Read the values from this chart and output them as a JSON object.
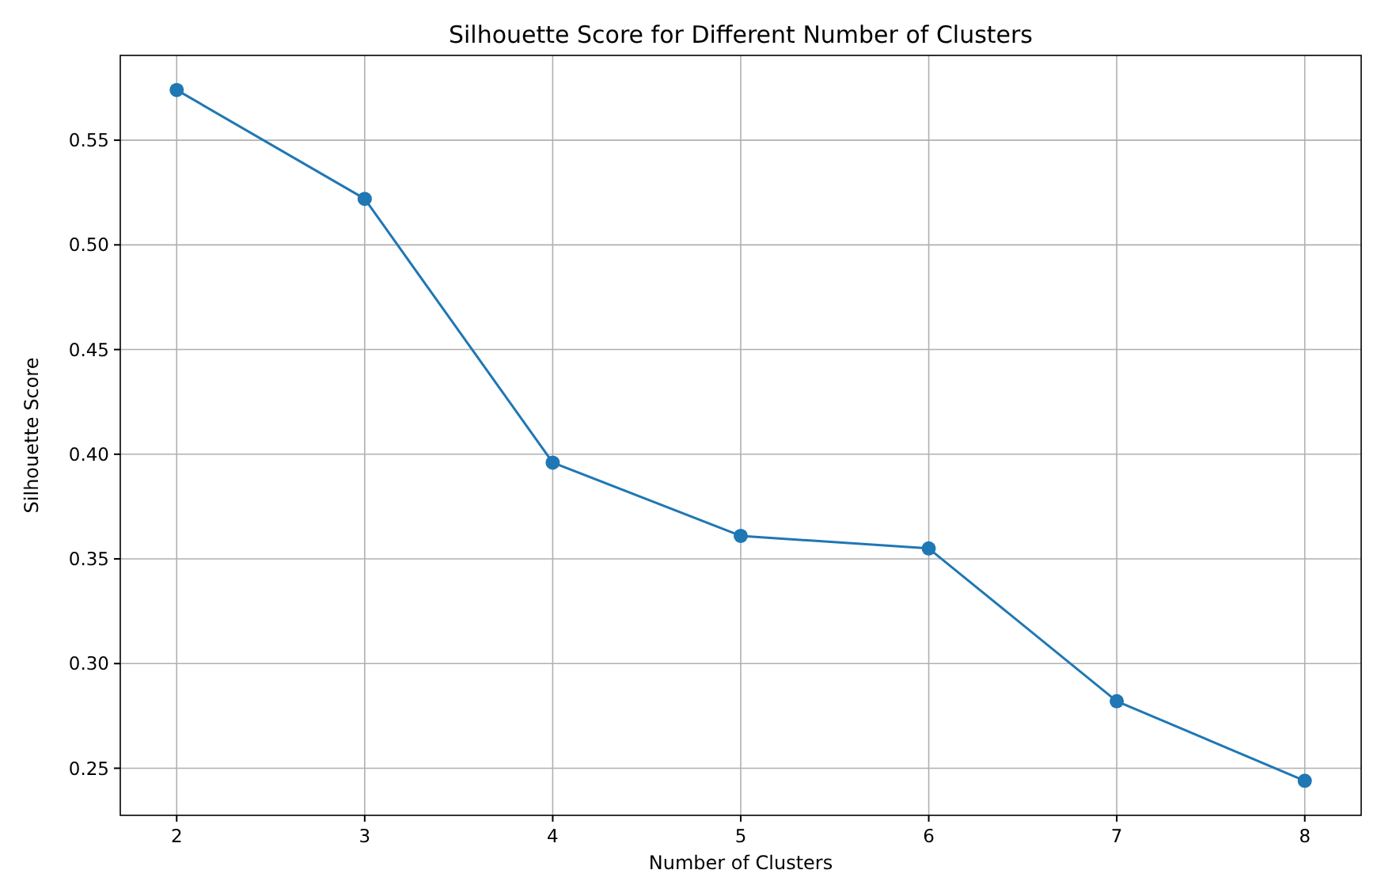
{
  "chart_data": {
    "type": "line",
    "title": "Silhouette Score for Different Number of Clusters",
    "xlabel": "Number of Clusters",
    "ylabel": "Silhouette Score",
    "x": [
      2,
      3,
      4,
      5,
      6,
      7,
      8
    ],
    "series": [
      {
        "color": "#1f77b4",
        "values": [
          0.574,
          0.522,
          0.396,
          0.361,
          0.355,
          0.282,
          0.244
        ]
      }
    ],
    "xlim": [
      1.7,
      8.3
    ],
    "xticks": [
      2,
      3,
      4,
      5,
      6,
      7,
      8
    ],
    "ylim": [
      0.2275,
      0.5905
    ],
    "yticks": [
      0.25,
      {
        "value": 0.3,
        "label": "0.30"
      },
      0.35,
      {
        "value": 0.4,
        "label": "0.40"
      },
      0.45,
      {
        "value": 0.5,
        "label": "0.50"
      },
      0.55
    ],
    "grid": true,
    "marker": "circle",
    "line_style": "solid"
  }
}
